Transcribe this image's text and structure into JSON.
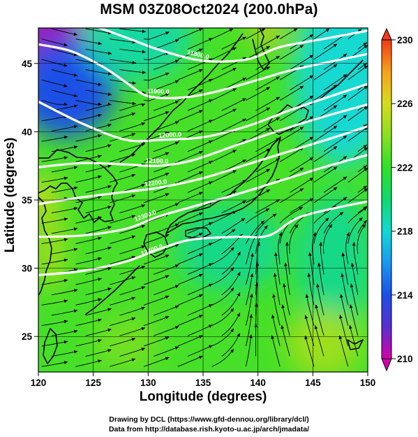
{
  "title": "MSM 03Z08Oct2024 (200.0hPa)",
  "credits": {
    "line1": "Drawing by DCL (https://www.gfd-dennou.org/library/dcl/)",
    "line2": "Data from http://database.rish.kyoto-u.ac.jp/arch/jmadata/"
  },
  "chart_data": {
    "type": "heatmap",
    "title": "MSM 03Z08Oct2024 (200.0hPa)",
    "xlabel": "Longitude (degrees)",
    "ylabel": "Latitude  (degrees)",
    "xlim": [
      120,
      150
    ],
    "ylim": [
      22.4,
      47.6
    ],
    "x_ticks": [
      120,
      125,
      130,
      135,
      140,
      145,
      150
    ],
    "y_ticks": [
      25,
      30,
      35,
      40,
      45
    ],
    "grid": true,
    "colorbar": {
      "min": 210,
      "max": 230,
      "ticks": [
        230,
        226,
        222,
        218,
        214,
        210
      ],
      "colors": [
        "#d600aa",
        "#5a2fd0",
        "#1c4fe6",
        "#1a98f0",
        "#12d9d2",
        "#12d96e",
        "#2fe02a",
        "#8ae020",
        "#d5dc1c",
        "#f5a21c",
        "#f23a16"
      ]
    },
    "contours": [
      {
        "label": "11800.0",
        "points": [
          [
            120,
            48.6
          ],
          [
            124,
            48.0
          ],
          [
            128,
            46.9
          ],
          [
            131,
            46.0
          ],
          [
            135,
            45.2
          ],
          [
            139,
            45.3
          ],
          [
            142,
            46.2
          ],
          [
            146,
            46.8
          ],
          [
            150,
            47.4
          ]
        ],
        "label_at": [
          134.5,
          45.3
        ]
      },
      {
        "label": "11900.0",
        "points": [
          [
            120,
            46.4
          ],
          [
            123,
            45.9
          ],
          [
            126,
            44.7
          ],
          [
            128,
            43.6
          ],
          [
            130,
            42.6
          ],
          [
            133,
            42.5
          ],
          [
            136,
            42.9
          ],
          [
            140,
            43.8
          ],
          [
            143,
            44.5
          ],
          [
            147,
            45.2
          ],
          [
            150,
            45.7
          ]
        ],
        "label_at": [
          130.9,
          42.6
        ]
      },
      {
        "label": "12000.0",
        "points": [
          [
            120,
            42.2
          ],
          [
            124,
            40.6
          ],
          [
            128,
            39.4
          ],
          [
            131,
            39.4
          ],
          [
            135,
            39.6
          ],
          [
            139,
            40.4
          ],
          [
            143,
            41.6
          ],
          [
            147,
            42.7
          ],
          [
            150,
            43.5
          ]
        ],
        "label_at": [
          132,
          39.4
        ]
      },
      {
        "label": "12100.0",
        "points": [
          [
            120,
            37.4
          ],
          [
            124,
            37.7
          ],
          [
            128,
            37.6
          ],
          [
            131,
            37.5
          ],
          [
            134,
            37.9
          ],
          [
            138,
            39.0
          ],
          [
            142,
            40.1
          ],
          [
            146,
            41.1
          ],
          [
            150,
            42.0
          ]
        ],
        "label_at": [
          130.8,
          37.5
        ]
      },
      {
        "label": "12200.0",
        "points": [
          [
            120,
            34.7
          ],
          [
            124,
            35.2
          ],
          [
            128,
            35.6
          ],
          [
            131,
            35.9
          ],
          [
            135,
            36.6
          ],
          [
            139,
            37.6
          ],
          [
            143,
            38.6
          ],
          [
            147,
            39.6
          ],
          [
            150,
            40.4
          ]
        ],
        "label_at": [
          130.7,
          35.9
        ]
      },
      {
        "label": "12300.0",
        "points": [
          [
            120,
            32.3
          ],
          [
            124,
            32.4
          ],
          [
            128,
            32.9
          ],
          [
            131,
            33.8
          ],
          [
            134,
            34.5
          ],
          [
            138,
            35.4
          ],
          [
            142,
            36.4
          ],
          [
            146,
            37.4
          ],
          [
            150,
            38.3
          ]
        ],
        "label_at": [
          129.8,
          33.5
        ]
      },
      {
        "label": "12400.0",
        "points": [
          [
            120,
            29.5
          ],
          [
            124,
            29.8
          ],
          [
            128,
            30.5
          ],
          [
            131,
            31.4
          ],
          [
            134,
            32.1
          ],
          [
            138,
            32.3
          ],
          [
            141,
            32.4
          ],
          [
            144,
            33.8
          ],
          [
            150,
            34.9
          ]
        ],
        "label_at": [
          130.4,
          31.0
        ]
      }
    ],
    "temperature_zones": [
      {
        "value": 211,
        "center": [
          121.0,
          46.6
        ],
        "radius": [
          3.8,
          3.0
        ]
      },
      {
        "value": 214,
        "center": [
          122.5,
          43.2
        ],
        "radius": [
          4.5,
          3.6
        ]
      },
      {
        "value": 219,
        "center": [
          129.0,
          47.0
        ],
        "radius": [
          5.0,
          3.2
        ]
      },
      {
        "value": 218,
        "center": [
          147.8,
          44.0
        ],
        "radius": [
          4.5,
          6.5
        ]
      },
      {
        "value": 219.5,
        "center": [
          137.5,
          31.5
        ],
        "radius": [
          5.0,
          3.2
        ]
      },
      {
        "value": 219.5,
        "center": [
          147.0,
          30.5
        ],
        "radius": [
          3.5,
          5.0
        ]
      },
      {
        "value": 225.5,
        "center": [
          120.3,
          35.0
        ],
        "radius": [
          1.6,
          1.8
        ]
      },
      {
        "value": 224.5,
        "center": [
          121.0,
          31.5
        ],
        "radius": [
          1.5,
          3.2
        ]
      },
      {
        "value": 226.5,
        "center": [
          140.8,
          47.3
        ],
        "radius": [
          1.7,
          0.9
        ]
      },
      {
        "value": 224.5,
        "center": [
          146.0,
          24.5
        ],
        "radius": [
          3.5,
          2.5
        ]
      },
      {
        "value": 223.5,
        "center": [
          128.0,
          24.5
        ],
        "radius": [
          3.0,
          2.0
        ]
      }
    ]
  }
}
